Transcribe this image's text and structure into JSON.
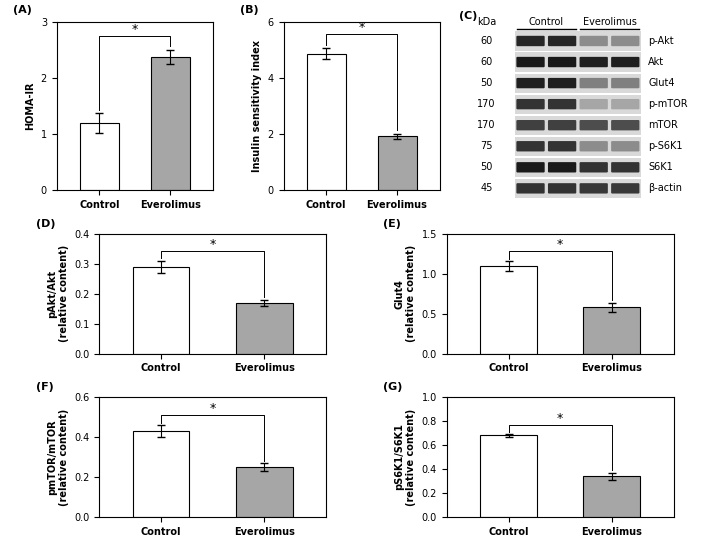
{
  "chart_data": [
    {
      "type": "bar",
      "title": "(A)",
      "y_label": "HOMA-IR",
      "categories": [
        "Control",
        "Everolimus"
      ],
      "values": [
        1.2,
        2.37
      ],
      "errors": [
        0.17,
        0.13
      ],
      "colors": [
        "#ffffff",
        "#a6a6a6"
      ],
      "ylim": [
        0,
        3
      ],
      "yticks": [
        0,
        1,
        2,
        3
      ],
      "annotation": "*"
    },
    {
      "type": "bar",
      "title": "(B)",
      "y_label": "Insulin sensitivity index",
      "categories": [
        "Control",
        "Everolimus"
      ],
      "values": [
        4.87,
        1.92
      ],
      "errors": [
        0.2,
        0.1
      ],
      "colors": [
        "#ffffff",
        "#a6a6a6"
      ],
      "ylim": [
        0,
        6
      ],
      "yticks": [
        0,
        2,
        4,
        6
      ],
      "annotation": "*"
    },
    {
      "type": "bar",
      "title": "(D)",
      "y_label": "pAkt/Akt\n(relative content)",
      "categories": [
        "Control",
        "Everolimus"
      ],
      "values": [
        0.29,
        0.17
      ],
      "errors": [
        0.02,
        0.01
      ],
      "colors": [
        "#ffffff",
        "#a6a6a6"
      ],
      "ylim": [
        0,
        0.4
      ],
      "yticks": [
        0.0,
        0.1,
        0.2,
        0.3,
        0.4
      ],
      "annotation": "*"
    },
    {
      "type": "bar",
      "title": "(E)",
      "y_label": "Glut4\n(relative content)",
      "categories": [
        "Control",
        "Everolimus"
      ],
      "values": [
        1.1,
        0.58
      ],
      "errors": [
        0.06,
        0.06
      ],
      "colors": [
        "#ffffff",
        "#a6a6a6"
      ],
      "ylim": [
        0,
        1.5
      ],
      "yticks": [
        0.0,
        0.5,
        1.0,
        1.5
      ],
      "annotation": "*"
    },
    {
      "type": "bar",
      "title": "(F)",
      "y_label": "pmTOR/mTOR\n(relative content)",
      "categories": [
        "Control",
        "Everolimus"
      ],
      "values": [
        0.43,
        0.25
      ],
      "errors": [
        0.03,
        0.02
      ],
      "colors": [
        "#ffffff",
        "#a6a6a6"
      ],
      "ylim": [
        0,
        0.6
      ],
      "yticks": [
        0.0,
        0.2,
        0.4,
        0.6
      ],
      "annotation": "*"
    },
    {
      "type": "bar",
      "title": "(G)",
      "y_label": "pS6K1/S6K1\n(relative content)",
      "categories": [
        "Control",
        "Everolimus"
      ],
      "values": [
        0.68,
        0.34
      ],
      "errors": [
        0.01,
        0.03
      ],
      "colors": [
        "#ffffff",
        "#a6a6a6"
      ],
      "ylim": [
        0,
        1.0
      ],
      "yticks": [
        0.0,
        0.2,
        0.4,
        0.6,
        0.8,
        1.0
      ],
      "annotation": "*"
    }
  ],
  "blot": {
    "title": "(C)",
    "header": "kDa",
    "groups": [
      "Control",
      "Everolimus"
    ],
    "rows": [
      {
        "kda": 60,
        "protein": "p-Akt"
      },
      {
        "kda": 60,
        "protein": "Akt"
      },
      {
        "kda": 50,
        "protein": "Glut4"
      },
      {
        "kda": 170,
        "protein": "p-mTOR"
      },
      {
        "kda": 170,
        "protein": "mTOR"
      },
      {
        "kda": 75,
        "protein": "p-S6K1"
      },
      {
        "kda": 50,
        "protein": "S6K1"
      },
      {
        "kda": 45,
        "protein": "β-actin"
      }
    ]
  }
}
